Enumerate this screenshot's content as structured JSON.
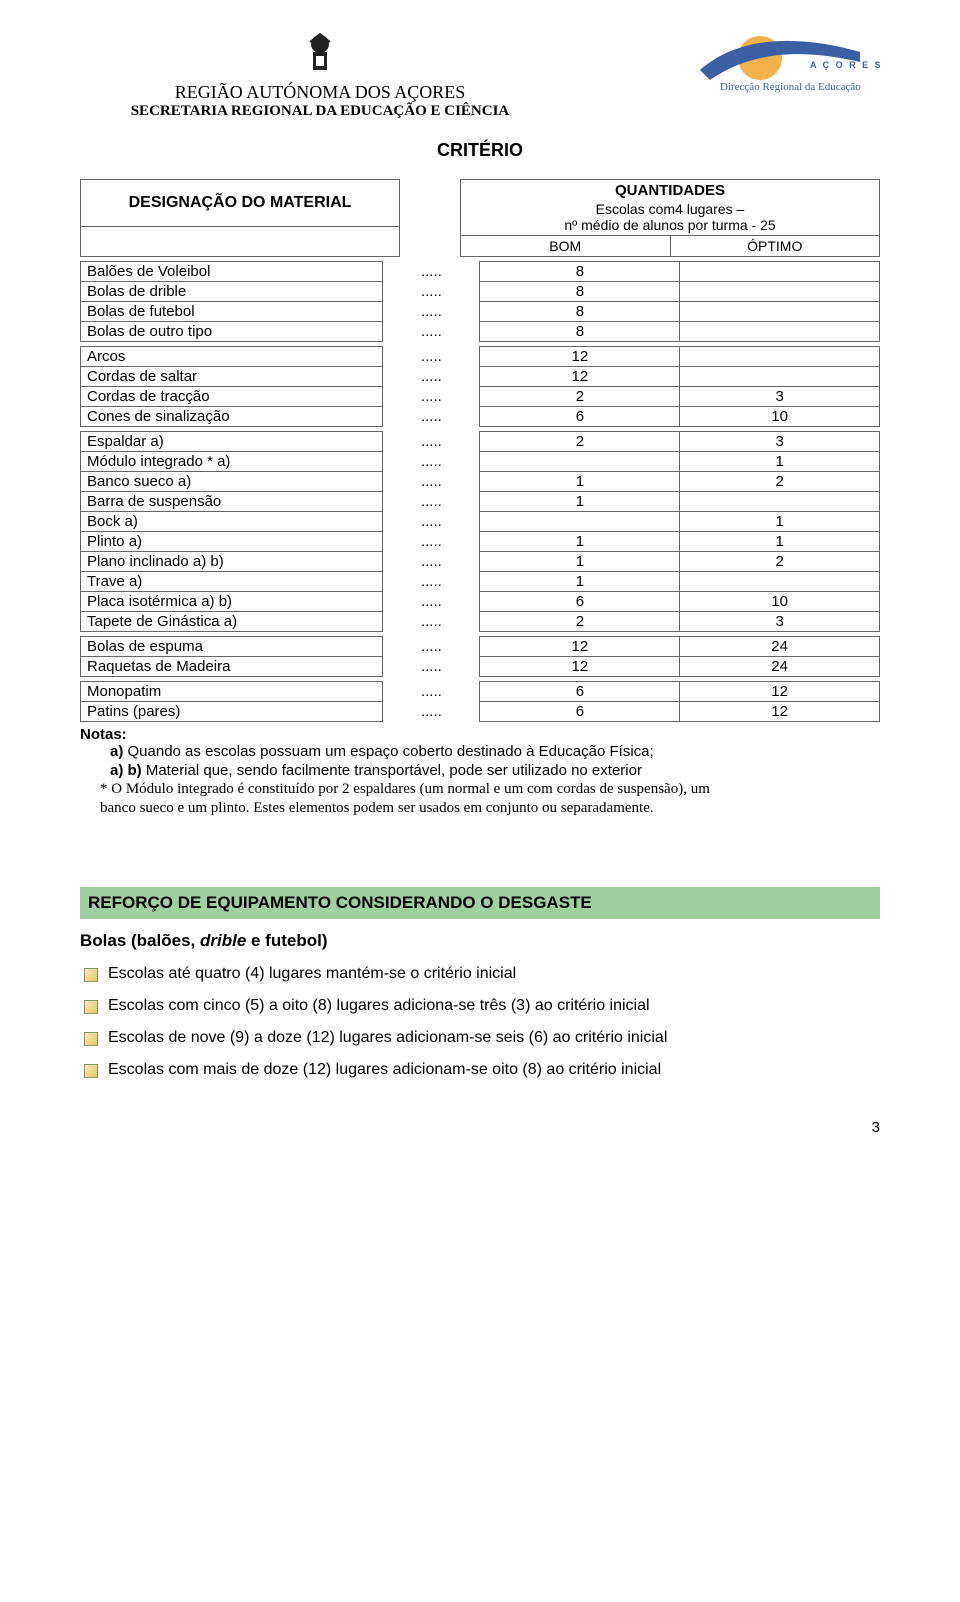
{
  "header": {
    "region": "REGIÃO AUTÓNOMA DOS AÇORES",
    "secretaria": "SECRETARIA REGIONAL DA EDUCAÇÃO E CIÊNCIA",
    "logo_text_top": "AÇORES",
    "logo_text_bottom": "Direcção Regional da Educação"
  },
  "title": "CRITÉRIO",
  "designacao_label": "DESIGNAÇÃO DO MATERIAL",
  "quant_title": "QUANTIDADES",
  "quant_sub1": "Escolas com4 lugares –",
  "quant_sub2": "nº médio de alunos por turma - 25",
  "col_bom": "BOM",
  "col_optimo": "ÓPTIMO",
  "groups": [
    [
      {
        "label": "Balões de Voleibol",
        "bom": "8",
        "opt": ""
      },
      {
        "label": "Bolas de drible",
        "bom": "8",
        "opt": ""
      },
      {
        "label": "Bolas de futebol",
        "bom": "8",
        "opt": ""
      },
      {
        "label": "Bolas de outro tipo",
        "bom": "8",
        "opt": ""
      }
    ],
    [
      {
        "label": "Arcos",
        "bom": "12",
        "opt": ""
      },
      {
        "label": "Cordas de saltar",
        "bom": "12",
        "opt": ""
      },
      {
        "label": "Cordas de tracção",
        "bom": "2",
        "opt": "3"
      },
      {
        "label": "Cones de sinalização",
        "bom": "6",
        "opt": "10"
      }
    ],
    [
      {
        "label": "Espaldar   a)",
        "bom": "2",
        "opt": "3"
      },
      {
        "label": "Módulo integrado *   a)",
        "bom": "",
        "opt": "1"
      },
      {
        "label": "Banco sueco   a)",
        "bom": "1",
        "opt": "2"
      },
      {
        "label": "Barra de suspensão",
        "bom": "1",
        "opt": ""
      },
      {
        "label": "Bock   a)",
        "bom": "",
        "opt": "1"
      },
      {
        "label": "Plinto   a)",
        "bom": "1",
        "opt": "1"
      },
      {
        "label": "Plano inclinado   a) b)",
        "bom": "1",
        "opt": "2"
      },
      {
        "label": "Trave   a)",
        "bom": "1",
        "opt": ""
      },
      {
        "label": "Placa isotérmica  a) b)",
        "bom": "6",
        "opt": "10"
      },
      {
        "label": "Tapete de Ginástica   a)",
        "bom": "2",
        "opt": "3"
      }
    ],
    [
      {
        "label": "Bolas de espuma",
        "bom": "12",
        "opt": "24"
      },
      {
        "label": "Raquetas de Madeira",
        "bom": "12",
        "opt": "24"
      }
    ],
    [
      {
        "label": "Monopatim",
        "bom": "6",
        "opt": "12"
      },
      {
        "label": "Patins (pares)",
        "bom": "6",
        "opt": "12"
      }
    ]
  ],
  "dots": ".....",
  "notes_title": "Notas:",
  "note_a": "a)     Quando as escolas possuam um espaço coberto destinado à Educação Física;",
  "note_ab": "a) b) Material que, sendo facilmente transportável, pode ser utilizado no exterior",
  "note_star": "* O Módulo integrado é constituído por 2 espaldares (um normal e um com cordas de suspensão), um",
  "note_star2": "banco sueco e um plinto. Estes elementos podem ser usados em conjunto ou separadamente.",
  "reforco_title": "REFORÇO DE EQUIPAMENTO CONSIDERANDO O DESGASTE",
  "bolas_prefix": "Bolas (balões, ",
  "bolas_italic": "drible",
  "bolas_suffix": " e futebol)",
  "bullets": [
    "Escolas até quatro (4) lugares mantém-se o critério inicial",
    "Escolas com cinco (5) a oito (8) lugares adiciona-se três (3) ao critério inicial",
    "Escolas de nove (9) a doze (12) lugares adicionam-se seis (6) ao critério inicial",
    "Escolas com mais de doze (12) lugares adicionam-se oito (8) ao critério inicial"
  ],
  "page_number": "3",
  "colors": {
    "border": "#666666",
    "band_bg": "#9fd19f",
    "logo_sun": "#f2b14a",
    "logo_swoosh": "#3a5fa3"
  }
}
